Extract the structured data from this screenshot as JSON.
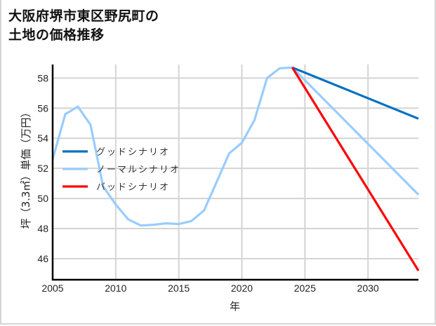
{
  "title_line1": "大阪府堺市東区野尻町の",
  "title_line2": "土地の価格推移",
  "chart_data": {
    "type": "line",
    "title": "大阪府堺市東区野尻町の土地の価格推移",
    "xlabel": "年",
    "ylabel": "坪（3.3㎡）単価（万円）",
    "xlim": [
      2005,
      2034
    ],
    "ylim": [
      44.6,
      58.9
    ],
    "xticks": [
      2005,
      2010,
      2015,
      2020,
      2025,
      2030
    ],
    "yticks": [
      46,
      48,
      50,
      52,
      54,
      56,
      58
    ],
    "grid": true,
    "legend_position": "center-left",
    "series": [
      {
        "name": "グッドシナリオ",
        "color": "#0070c0",
        "x": [
          2024,
          2034
        ],
        "values": [
          58.7,
          55.3
        ]
      },
      {
        "name": "ノーマルシナリオ",
        "color": "#99ccff",
        "x": [
          2005,
          2006,
          2007,
          2008,
          2009,
          2010,
          2011,
          2012,
          2013,
          2014,
          2015,
          2016,
          2017,
          2018,
          2019,
          2020,
          2021,
          2022,
          2023,
          2024,
          2034
        ],
        "values": [
          52.6,
          55.6,
          56.1,
          54.9,
          50.8,
          49.6,
          48.6,
          48.2,
          48.25,
          48.35,
          48.3,
          48.5,
          49.2,
          51.1,
          53.0,
          53.7,
          55.2,
          58.0,
          58.65,
          58.7,
          50.25
        ]
      },
      {
        "name": "バッドシナリオ",
        "color": "#ff0000",
        "x": [
          2024,
          2034
        ],
        "values": [
          58.7,
          45.2
        ]
      }
    ]
  }
}
